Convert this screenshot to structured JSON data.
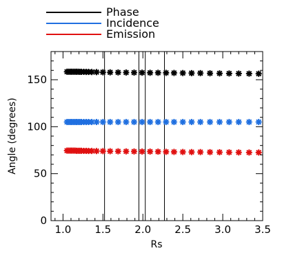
{
  "chart_data": {
    "type": "scatter",
    "xlabel": "Rs",
    "ylabel": "Angle (degrees)",
    "xlim": [
      0.85,
      3.5
    ],
    "ylim": [
      0,
      180
    ],
    "xticks": [
      1.0,
      1.5,
      2.0,
      2.5,
      3.0,
      3.5
    ],
    "xtick_labels": [
      "1.0",
      "1.5",
      "2.0",
      "2.5",
      "3.0",
      "3.5"
    ],
    "yticks": [
      0,
      50,
      100,
      150
    ],
    "ytick_labels": [
      "0",
      "50",
      "100",
      "150"
    ],
    "marker": "asterisk",
    "legend_position": "top-left, above plot",
    "reference_lines_x": [
      1.52,
      1.95,
      2.03,
      2.27
    ],
    "x": [
      1.05,
      1.07,
      1.09,
      1.11,
      1.13,
      1.15,
      1.17,
      1.19,
      1.21,
      1.23,
      1.26,
      1.29,
      1.32,
      1.36,
      1.42,
      1.5,
      1.59,
      1.69,
      1.79,
      1.89,
      1.99,
      2.09,
      2.19,
      2.29,
      2.39,
      2.5,
      2.61,
      2.72,
      2.84,
      2.96,
      3.08,
      3.2,
      3.33,
      3.45
    ],
    "series": [
      {
        "name": "Phase",
        "color": "#000000",
        "values": [
          158.5,
          158.5,
          158.5,
          158.5,
          158.5,
          158.5,
          158.5,
          158.5,
          158.4,
          158.4,
          158.4,
          158.3,
          158.3,
          158.2,
          158.1,
          158.0,
          157.9,
          157.8,
          157.7,
          157.6,
          157.5,
          157.4,
          157.4,
          157.3,
          157.2,
          157.1,
          157.0,
          157.0,
          156.9,
          156.8,
          156.7,
          156.6,
          156.5,
          156.4
        ]
      },
      {
        "name": "Incidence",
        "color": "#1f6fe0",
        "values": [
          105.0,
          105.0,
          105.0,
          105.0,
          105.0,
          105.0,
          105.0,
          105.0,
          105.0,
          105.0,
          105.0,
          105.0,
          105.0,
          105.0,
          105.0,
          105.0,
          105.0,
          105.0,
          105.0,
          105.0,
          105.0,
          105.0,
          105.0,
          105.0,
          105.0,
          105.0,
          105.0,
          105.0,
          105.0,
          105.0,
          105.0,
          105.0,
          105.0,
          105.0
        ]
      },
      {
        "name": "Emission",
        "color": "#e01010",
        "values": [
          74.5,
          74.5,
          74.5,
          74.5,
          74.5,
          74.5,
          74.4,
          74.4,
          74.4,
          74.4,
          74.3,
          74.3,
          74.2,
          74.2,
          74.1,
          74.0,
          73.9,
          73.8,
          73.7,
          73.6,
          73.5,
          73.5,
          73.4,
          73.3,
          73.2,
          73.1,
          73.0,
          73.0,
          72.9,
          72.8,
          72.7,
          72.6,
          72.5,
          72.5
        ]
      }
    ]
  }
}
